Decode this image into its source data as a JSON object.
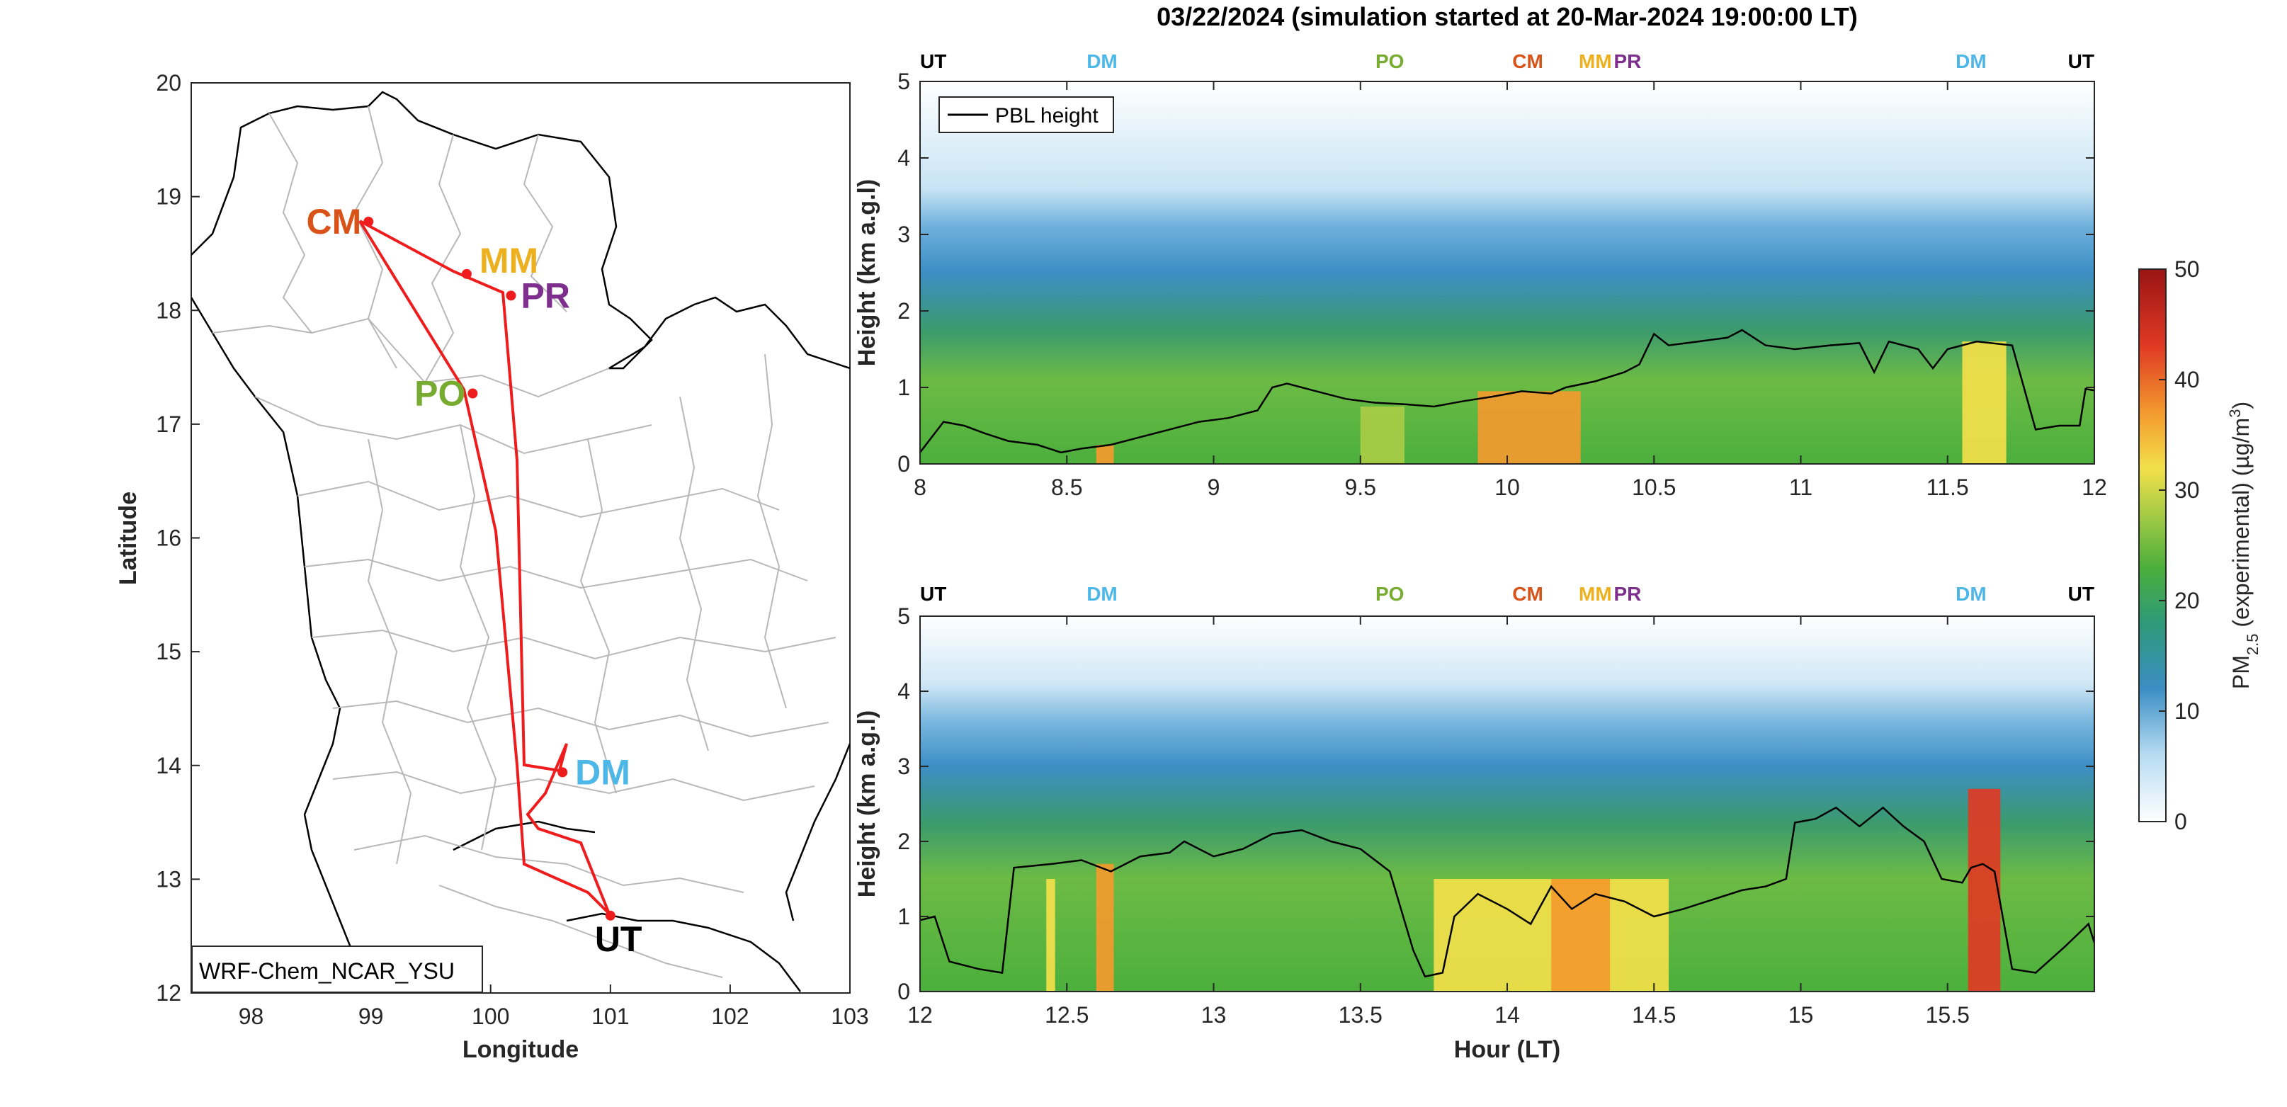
{
  "figure": {
    "title": "03/22/2024 (simulation started at 20-Mar-2024 19:00:00 LT)"
  },
  "colors": {
    "route": "#ee1c1c",
    "sites": {
      "UT": "#000000",
      "DM": "#4db8e8",
      "PO": "#77ac30",
      "CM": "#d95319",
      "MM": "#edb120",
      "PR": "#7e2f8e"
    }
  },
  "map": {
    "xlabel": "Longitude",
    "ylabel": "Latitude",
    "xticks": [
      "98",
      "99",
      "100",
      "101",
      "102",
      "103"
    ],
    "yticks": [
      "12",
      "13",
      "14",
      "15",
      "16",
      "17",
      "18",
      "19",
      "20"
    ],
    "model_label": "WRF-Chem_NCAR_YSU",
    "sites": [
      {
        "name": "CM",
        "lon": 98.98,
        "lat": 18.78
      },
      {
        "name": "MM",
        "lon": 99.8,
        "lat": 18.32
      },
      {
        "name": "PR",
        "lon": 100.17,
        "lat": 18.13
      },
      {
        "name": "PO",
        "lon": 99.85,
        "lat": 17.27
      },
      {
        "name": "DM",
        "lon": 100.6,
        "lat": 13.94
      },
      {
        "name": "UT",
        "lon": 101.0,
        "lat": 12.68
      }
    ]
  },
  "chart_data": [
    {
      "type": "heatmap",
      "xlabel": "",
      "ylabel": "Height (km a.g.l)",
      "xlim": [
        8,
        12
      ],
      "ylim": [
        0,
        5
      ],
      "xticks": [
        "8",
        "8.5",
        "9",
        "9.5",
        "10",
        "10.5",
        "11",
        "11.5",
        "12"
      ],
      "yticks": [
        "0",
        "1",
        "2",
        "3",
        "4",
        "5"
      ],
      "legend": {
        "placement": "top-left",
        "entries": [
          "PBL height"
        ]
      },
      "site_markers": [
        {
          "label": "UT",
          "x": 8.0
        },
        {
          "label": "DM",
          "x": 8.62
        },
        {
          "label": "PO",
          "x": 9.6
        },
        {
          "label": "CM",
          "x": 10.07
        },
        {
          "label": "MM",
          "x": 10.3
        },
        {
          "label": "PR",
          "x": 10.41
        },
        {
          "label": "DM",
          "x": 11.58
        },
        {
          "label": "UT",
          "x": 12.0
        }
      ],
      "pbl_height_km": [
        [
          8.0,
          0.15
        ],
        [
          8.08,
          0.55
        ],
        [
          8.15,
          0.5
        ],
        [
          8.22,
          0.4
        ],
        [
          8.3,
          0.3
        ],
        [
          8.4,
          0.25
        ],
        [
          8.48,
          0.15
        ],
        [
          8.55,
          0.2
        ],
        [
          8.65,
          0.25
        ],
        [
          8.75,
          0.35
        ],
        [
          8.85,
          0.45
        ],
        [
          8.95,
          0.55
        ],
        [
          9.05,
          0.6
        ],
        [
          9.15,
          0.7
        ],
        [
          9.2,
          1.0
        ],
        [
          9.25,
          1.05
        ],
        [
          9.35,
          0.95
        ],
        [
          9.45,
          0.85
        ],
        [
          9.55,
          0.8
        ],
        [
          9.65,
          0.78
        ],
        [
          9.75,
          0.75
        ],
        [
          9.85,
          0.82
        ],
        [
          9.95,
          0.88
        ],
        [
          10.05,
          0.95
        ],
        [
          10.15,
          0.92
        ],
        [
          10.2,
          1.0
        ],
        [
          10.3,
          1.08
        ],
        [
          10.4,
          1.2
        ],
        [
          10.45,
          1.3
        ],
        [
          10.5,
          1.7
        ],
        [
          10.55,
          1.55
        ],
        [
          10.65,
          1.6
        ],
        [
          10.75,
          1.65
        ],
        [
          10.8,
          1.75
        ],
        [
          10.88,
          1.55
        ],
        [
          10.98,
          1.5
        ],
        [
          11.1,
          1.55
        ],
        [
          11.2,
          1.58
        ],
        [
          11.25,
          1.2
        ],
        [
          11.3,
          1.6
        ],
        [
          11.4,
          1.5
        ],
        [
          11.45,
          1.25
        ],
        [
          11.5,
          1.5
        ],
        [
          11.6,
          1.6
        ],
        [
          11.72,
          1.55
        ],
        [
          11.76,
          1.0
        ],
        [
          11.8,
          0.45
        ],
        [
          11.88,
          0.5
        ],
        [
          11.95,
          0.5
        ],
        [
          11.97,
          0.98
        ],
        [
          12.0,
          0.96
        ]
      ],
      "pm25_hotspots": [
        {
          "x": [
            8.6,
            8.66
          ],
          "z": [
            0.0,
            0.25
          ],
          "value": 42
        },
        {
          "x": [
            9.5,
            9.65
          ],
          "z": [
            0.0,
            0.75
          ],
          "value": 28
        },
        {
          "x": [
            9.9,
            10.25
          ],
          "z": [
            0.0,
            0.95
          ],
          "value": 40
        },
        {
          "x": [
            11.55,
            11.7
          ],
          "z": [
            0.0,
            1.6
          ],
          "value": 34
        }
      ]
    },
    {
      "type": "heatmap",
      "xlabel": "Hour (LT)",
      "ylabel": "Height (km a.g.l)",
      "xlim": [
        12,
        16
      ],
      "ylim": [
        0,
        5
      ],
      "xticks": [
        "12",
        "12.5",
        "13",
        "13.5",
        "14",
        "14.5",
        "15",
        "15.5"
      ],
      "yticks": [
        "0",
        "1",
        "2",
        "3",
        "4",
        "5"
      ],
      "site_markers": [
        {
          "label": "UT",
          "x": 12.0
        },
        {
          "label": "DM",
          "x": 12.62
        },
        {
          "label": "PO",
          "x": 13.6
        },
        {
          "label": "CM",
          "x": 14.07
        },
        {
          "label": "MM",
          "x": 14.3
        },
        {
          "label": "PR",
          "x": 14.41
        },
        {
          "label": "DM",
          "x": 15.58
        },
        {
          "label": "UT",
          "x": 16.0
        }
      ],
      "pbl_height_km": [
        [
          12.0,
          0.95
        ],
        [
          12.05,
          1.0
        ],
        [
          12.1,
          0.4
        ],
        [
          12.2,
          0.3
        ],
        [
          12.28,
          0.25
        ],
        [
          12.32,
          1.65
        ],
        [
          12.45,
          1.7
        ],
        [
          12.55,
          1.75
        ],
        [
          12.65,
          1.6
        ],
        [
          12.75,
          1.8
        ],
        [
          12.85,
          1.85
        ],
        [
          12.9,
          2.0
        ],
        [
          13.0,
          1.8
        ],
        [
          13.1,
          1.9
        ],
        [
          13.2,
          2.1
        ],
        [
          13.3,
          2.15
        ],
        [
          13.4,
          2.0
        ],
        [
          13.5,
          1.9
        ],
        [
          13.55,
          1.75
        ],
        [
          13.6,
          1.6
        ],
        [
          13.68,
          0.55
        ],
        [
          13.72,
          0.2
        ],
        [
          13.78,
          0.25
        ],
        [
          13.82,
          1.0
        ],
        [
          13.9,
          1.3
        ],
        [
          14.0,
          1.1
        ],
        [
          14.08,
          0.9
        ],
        [
          14.15,
          1.4
        ],
        [
          14.22,
          1.1
        ],
        [
          14.3,
          1.3
        ],
        [
          14.4,
          1.2
        ],
        [
          14.5,
          1.0
        ],
        [
          14.6,
          1.1
        ],
        [
          14.72,
          1.25
        ],
        [
          14.8,
          1.35
        ],
        [
          14.88,
          1.4
        ],
        [
          14.95,
          1.5
        ],
        [
          14.98,
          2.25
        ],
        [
          15.05,
          2.3
        ],
        [
          15.12,
          2.45
        ],
        [
          15.2,
          2.2
        ],
        [
          15.28,
          2.45
        ],
        [
          15.35,
          2.2
        ],
        [
          15.42,
          2.0
        ],
        [
          15.48,
          1.5
        ],
        [
          15.55,
          1.45
        ],
        [
          15.58,
          1.65
        ],
        [
          15.62,
          1.7
        ],
        [
          15.66,
          1.6
        ],
        [
          15.72,
          0.3
        ],
        [
          15.8,
          0.25
        ],
        [
          15.9,
          0.6
        ],
        [
          15.98,
          0.9
        ],
        [
          16.0,
          0.65
        ]
      ],
      "pm25_hotspots": [
        {
          "x": [
            12.43,
            12.46
          ],
          "z": [
            0.0,
            1.5
          ],
          "value": 35
        },
        {
          "x": [
            12.6,
            12.66
          ],
          "z": [
            0.0,
            1.7
          ],
          "value": 38
        },
        {
          "x": [
            13.75,
            14.55
          ],
          "z": [
            0.0,
            1.5
          ],
          "value": 32
        },
        {
          "x": [
            14.15,
            14.35
          ],
          "z": [
            0.0,
            1.5
          ],
          "value": 40
        },
        {
          "x": [
            15.57,
            15.68
          ],
          "z": [
            0.0,
            2.7
          ],
          "value": 44
        }
      ]
    }
  ],
  "colorbar": {
    "label": "PM2.5 (experimental) (µg/m3)",
    "ticks": [
      "0",
      "10",
      "20",
      "30",
      "40",
      "50"
    ],
    "range": [
      0,
      50
    ]
  }
}
